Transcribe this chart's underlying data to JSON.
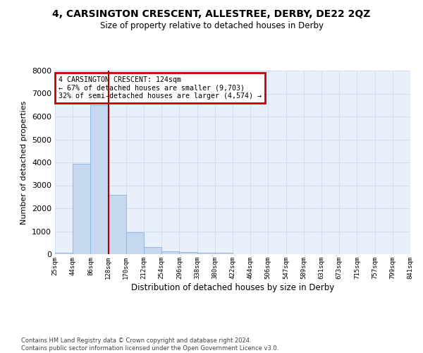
{
  "title": "4, CARSINGTON CRESCENT, ALLESTREE, DERBY, DE22 2QZ",
  "subtitle": "Size of property relative to detached houses in Derby",
  "xlabel": "Distribution of detached houses by size in Derby",
  "ylabel": "Number of detached properties",
  "bar_values": [
    75,
    3950,
    6500,
    2600,
    950,
    320,
    130,
    80,
    60,
    60,
    0,
    0,
    0,
    0,
    0,
    0,
    0,
    0,
    0,
    0
  ],
  "bin_labels": [
    "25sqm",
    "44sqm",
    "86sqm",
    "128sqm",
    "170sqm",
    "212sqm",
    "254sqm",
    "296sqm",
    "338sqm",
    "380sqm",
    "422sqm",
    "464sqm",
    "506sqm",
    "547sqm",
    "589sqm",
    "631sqm",
    "673sqm",
    "715sqm",
    "757sqm",
    "799sqm",
    "841sqm"
  ],
  "bar_color": "#c5d8f0",
  "bar_edge_color": "#8ab4da",
  "grid_color": "#d0dff5",
  "vline_color": "#aa0000",
  "ylim": [
    0,
    8000
  ],
  "yticks": [
    0,
    1000,
    2000,
    3000,
    4000,
    5000,
    6000,
    7000,
    8000
  ],
  "annotation_title": "4 CARSINGTON CRESCENT: 124sqm",
  "annotation_line1": "← 67% of detached houses are smaller (9,703)",
  "annotation_line2": "32% of semi-detached houses are larger (4,574) →",
  "annotation_box_color": "#cc0000",
  "footer_line1": "Contains HM Land Registry data © Crown copyright and database right 2024.",
  "footer_line2": "Contains public sector information licensed under the Open Government Licence v3.0.",
  "plot_bg_color": "#eaf0fb",
  "fig_bg_color": "#ffffff"
}
